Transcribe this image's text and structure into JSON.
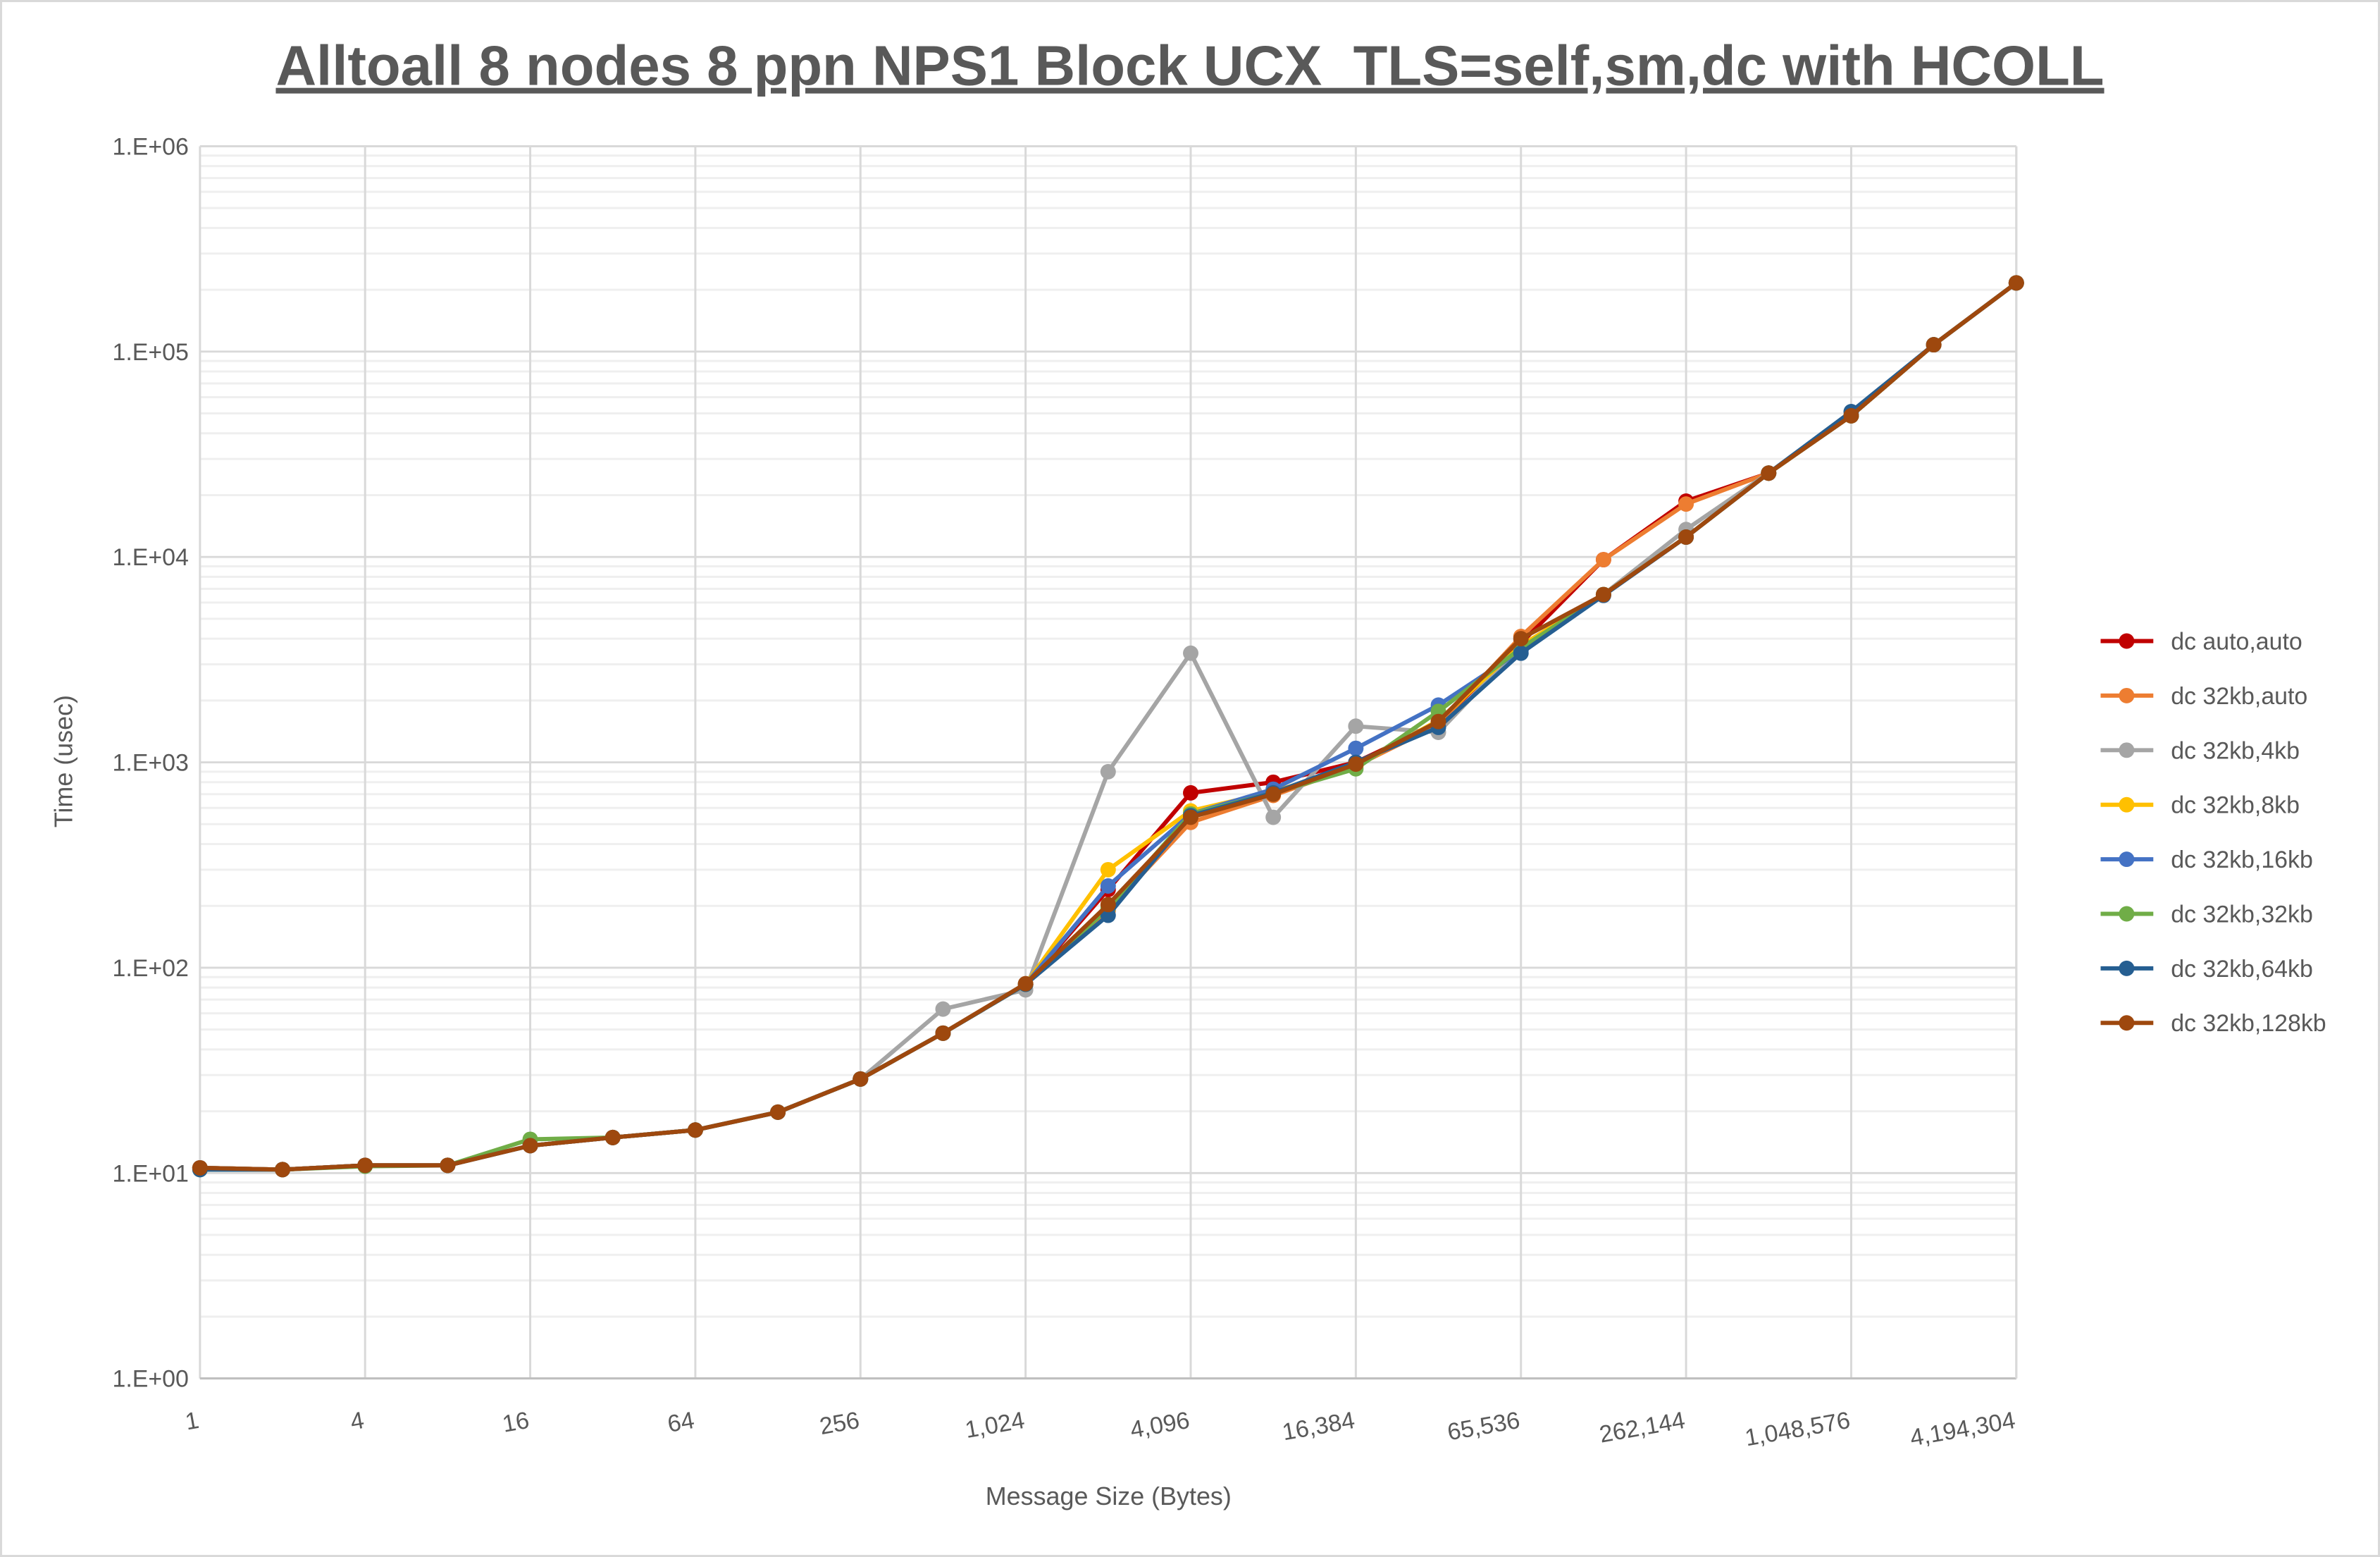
{
  "chart_data": {
    "type": "line",
    "title": "Alltoall 8 nodes 8 ppn NPS1 Block UCX_TLS=self,sm,dc with HCOLL",
    "xlabel": "Message Size (Bytes)",
    "ylabel": "Time (usec)",
    "x_scale": "log2",
    "y_scale": "log10",
    "ylim": [
      1,
      1000000
    ],
    "grid": true,
    "legend_position": "right",
    "x": [
      1,
      2,
      4,
      8,
      16,
      32,
      64,
      128,
      256,
      512,
      1024,
      2048,
      4096,
      8192,
      16384,
      32768,
      65536,
      131072,
      262144,
      524288,
      1048576,
      2097152,
      4194304
    ],
    "x_tick_labels": [
      "1",
      "4",
      "16",
      "64",
      "256",
      "1,024",
      "4,096",
      "16,384",
      "65,536",
      "262,144",
      "1,048,576",
      "4,194,304"
    ],
    "x_tick_values": [
      1,
      4,
      16,
      64,
      256,
      1024,
      4096,
      16384,
      65536,
      262144,
      1048576,
      4194304
    ],
    "y_tick_labels": [
      "1.E+00",
      "1.E+01",
      "1.E+02",
      "1.E+03",
      "1.E+04",
      "1.E+05",
      "1.E+06"
    ],
    "y_tick_values": [
      1,
      10,
      100,
      1000,
      10000,
      100000,
      1000000
    ],
    "series": [
      {
        "name": "dc auto,auto",
        "color": "#c00000",
        "values": [
          10.6,
          10.4,
          10.9,
          10.9,
          13.6,
          14.9,
          16.2,
          19.8,
          28.7,
          48,
          83,
          240,
          710,
          800,
          1000,
          1550,
          3800,
          9700,
          18700,
          25600,
          48700,
          108000,
          216000
        ]
      },
      {
        "name": "dc 32kb,auto",
        "color": "#ed7d31",
        "values": [
          10.6,
          10.4,
          10.9,
          10.9,
          13.6,
          14.9,
          16.2,
          19.8,
          28.7,
          48,
          83,
          190,
          510,
          690,
          960,
          1520,
          4100,
          9700,
          18100,
          25600,
          48700,
          108000,
          216000
        ]
      },
      {
        "name": "dc 32kb,4kb",
        "color": "#a5a5a5",
        "values": [
          10.6,
          10.4,
          10.9,
          10.9,
          13.6,
          14.9,
          16.2,
          19.8,
          28.7,
          62.9,
          78,
          900,
          3400,
          540,
          1500,
          1400,
          3700,
          6560,
          13600,
          25600,
          48700,
          108000,
          216000
        ]
      },
      {
        "name": "dc 32kb,8kb",
        "color": "#ffc000",
        "values": [
          10.6,
          10.4,
          10.9,
          10.9,
          13.6,
          14.9,
          16.2,
          19.8,
          28.7,
          48,
          83,
          300,
          580,
          720,
          960,
          1600,
          3700,
          6560,
          12500,
          25600,
          48700,
          108000,
          216000
        ]
      },
      {
        "name": "dc 32kb,16kb",
        "color": "#4472c4",
        "values": [
          10.6,
          10.4,
          10.9,
          10.9,
          13.6,
          14.9,
          16.2,
          19.8,
          28.7,
          48,
          83,
          250,
          560,
          740,
          1170,
          1900,
          3500,
          6560,
          12500,
          25600,
          48700,
          108000,
          216000
        ]
      },
      {
        "name": "dc 32kb,32kb",
        "color": "#70ad47",
        "values": [
          10.4,
          10.4,
          10.8,
          10.9,
          14.6,
          14.9,
          16.2,
          19.8,
          28.7,
          48,
          83,
          195,
          560,
          710,
          930,
          1770,
          3600,
          6560,
          12500,
          25600,
          48700,
          108000,
          216000
        ]
      },
      {
        "name": "dc 32kb,64kb",
        "color": "#255e91",
        "values": [
          10.4,
          10.4,
          10.9,
          10.9,
          13.6,
          14.9,
          16.2,
          19.8,
          28.7,
          48,
          83,
          180,
          550,
          710,
          1000,
          1480,
          3400,
          6500,
          12500,
          25600,
          51000,
          108000,
          216000
        ]
      },
      {
        "name": "dc 32kb,128kb",
        "color": "#9e480e",
        "values": [
          10.6,
          10.4,
          10.9,
          10.9,
          13.6,
          14.9,
          16.2,
          19.8,
          28.7,
          48,
          83.6,
          203,
          540,
          700,
          980,
          1580,
          4000,
          6560,
          12500,
          25600,
          48700,
          108000,
          216000
        ]
      }
    ]
  }
}
